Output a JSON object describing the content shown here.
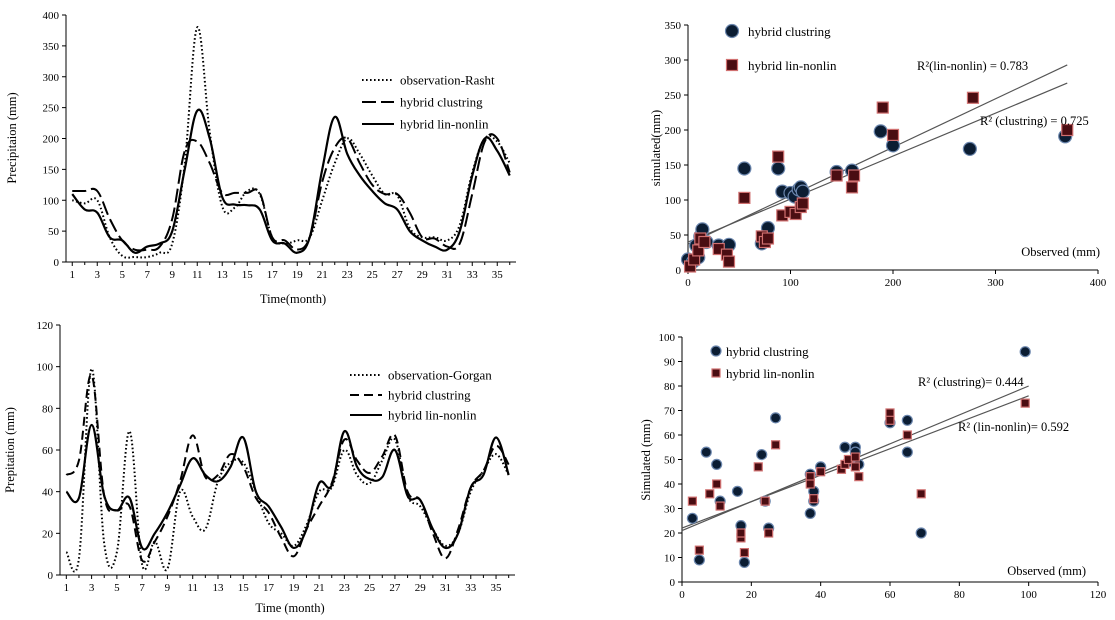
{
  "chart_data": [
    {
      "type": "line",
      "xlabel": "Time(month)",
      "ylabel": "Precipitaion (mm)",
      "ylim": [
        0,
        400
      ],
      "yticks": [
        0,
        50,
        100,
        150,
        200,
        250,
        300,
        350,
        400
      ],
      "xticks": [
        1,
        3,
        5,
        7,
        9,
        11,
        13,
        15,
        17,
        19,
        21,
        23,
        25,
        27,
        29,
        31,
        33,
        35
      ],
      "xlim": [
        0.5,
        36.5
      ],
      "legend_position": "top-right",
      "series": [
        {
          "name": "observation-Rasht",
          "style": "dotted",
          "values": [
            100,
            95,
            100,
            40,
            10,
            8,
            8,
            15,
            30,
            160,
            380,
            210,
            90,
            88,
            115,
            110,
            40,
            30,
            35,
            40,
            100,
            160,
            200,
            175,
            140,
            110,
            108,
            55,
            40,
            40,
            35,
            60,
            145,
            200,
            195,
            160
          ]
        },
        {
          "name": "hybrid clustring",
          "style": "longdash",
          "values": [
            115,
            115,
            115,
            70,
            35,
            20,
            20,
            25,
            70,
            180,
            195,
            160,
            112,
            112,
            112,
            112,
            40,
            35,
            20,
            40,
            130,
            185,
            200,
            160,
            125,
            110,
            110,
            80,
            40,
            38,
            25,
            30,
            110,
            195,
            200,
            145
          ]
        },
        {
          "name": "hybrid lin-nonlin",
          "style": "solid",
          "values": [
            110,
            85,
            80,
            40,
            35,
            15,
            25,
            30,
            50,
            150,
            245,
            200,
            105,
            93,
            92,
            85,
            35,
            30,
            15,
            40,
            150,
            235,
            175,
            140,
            115,
            95,
            85,
            50,
            35,
            25,
            20,
            50,
            140,
            200,
            180,
            140
          ]
        }
      ]
    },
    {
      "type": "scatter",
      "xlabel": "Observed (mm)",
      "ylabel": "simulated(mm)",
      "xlim": [
        0,
        400
      ],
      "ylim": [
        0,
        350
      ],
      "xticks": [
        0,
        100,
        200,
        300,
        400
      ],
      "yticks": [
        0,
        50,
        100,
        150,
        200,
        250,
        300,
        350
      ],
      "legend_position": "top-left",
      "annotations": [
        "R²(lin-nonlin) = 0.783",
        "R² (clustring) = 0.725"
      ],
      "trendlines": [
        {
          "name": "lin-nonlin",
          "x": [
            0,
            370
          ],
          "y": [
            37,
            293
          ]
        },
        {
          "name": "clustring",
          "x": [
            0,
            370
          ],
          "y": [
            40,
            267
          ]
        }
      ],
      "series": [
        {
          "name": "hybrid clustring",
          "marker": "circle",
          "points": [
            [
              0,
              15
            ],
            [
              5,
              12
            ],
            [
              8,
              35
            ],
            [
              10,
              18
            ],
            [
              12,
              48
            ],
            [
              14,
              58
            ],
            [
              18,
              40
            ],
            [
              30,
              35
            ],
            [
              40,
              36
            ],
            [
              55,
              145
            ],
            [
              72,
              38
            ],
            [
              78,
              60
            ],
            [
              88,
              145
            ],
            [
              92,
              112
            ],
            [
              100,
              110
            ],
            [
              104,
              105
            ],
            [
              108,
              115
            ],
            [
              110,
              118
            ],
            [
              112,
              112
            ],
            [
              145,
              140
            ],
            [
              160,
              142
            ],
            [
              188,
              198
            ],
            [
              200,
              178
            ],
            [
              275,
              173
            ],
            [
              368,
              191
            ]
          ]
        },
        {
          "name": "hybrid lin-nonlin",
          "marker": "square",
          "points": [
            [
              2,
              5
            ],
            [
              6,
              15
            ],
            [
              10,
              28
            ],
            [
              12,
              45
            ],
            [
              16,
              40
            ],
            [
              30,
              30
            ],
            [
              38,
              22
            ],
            [
              40,
              12
            ],
            [
              55,
              103
            ],
            [
              72,
              48
            ],
            [
              75,
              40
            ],
            [
              78,
              45
            ],
            [
              88,
              162
            ],
            [
              92,
              78
            ],
            [
              100,
              83
            ],
            [
              105,
              80
            ],
            [
              110,
              90
            ],
            [
              112,
              95
            ],
            [
              145,
              135
            ],
            [
              160,
              118
            ],
            [
              162,
              135
            ],
            [
              190,
              232
            ],
            [
              200,
              193
            ],
            [
              278,
              246
            ],
            [
              370,
              200
            ]
          ]
        }
      ]
    },
    {
      "type": "line",
      "xlabel": "Time (month)",
      "ylabel": "Prepitation (mm)",
      "ylim": [
        0,
        120
      ],
      "yticks": [
        0,
        20,
        40,
        60,
        80,
        100,
        120
      ],
      "xticks": [
        1,
        3,
        5,
        7,
        9,
        11,
        13,
        15,
        17,
        19,
        21,
        23,
        25,
        27,
        29,
        31,
        33,
        35
      ],
      "xlim": [
        0.5,
        36.5
      ],
      "legend_position": "top-right",
      "series": [
        {
          "name": "observation-Gorgan",
          "style": "dotted",
          "values": [
            11,
            8,
            99,
            15,
            11,
            69,
            5,
            16,
            3,
            40,
            28,
            22,
            45,
            54,
            54,
            40,
            25,
            20,
            14,
            24,
            40,
            42,
            60,
            48,
            44,
            55,
            65,
            38,
            33,
            22,
            14,
            20,
            40,
            50,
            58,
            48
          ]
        },
        {
          "name": "hybrid clustring",
          "style": "dashed",
          "values": [
            48,
            55,
            96,
            38,
            31,
            33,
            7,
            16,
            28,
            45,
            67,
            47,
            48,
            58,
            52,
            37,
            30,
            18,
            9,
            22,
            33,
            44,
            65,
            55,
            49,
            57,
            67,
            40,
            36,
            20,
            8,
            22,
            42,
            50,
            62,
            53
          ]
        },
        {
          "name": "hybrid lin-nonlin",
          "style": "solid",
          "values": [
            40,
            37,
            72,
            38,
            31,
            37,
            13,
            20,
            30,
            43,
            56,
            48,
            45,
            52,
            66,
            40,
            33,
            23,
            13,
            22,
            44,
            43,
            69,
            52,
            46,
            47,
            60,
            38,
            36,
            22,
            13,
            20,
            42,
            48,
            66,
            48
          ]
        }
      ]
    },
    {
      "type": "scatter",
      "xlabel": "Observed (mm)",
      "ylabel": "Simulated (mm)",
      "xlim": [
        0,
        120
      ],
      "ylim": [
        0,
        100
      ],
      "xticks": [
        0,
        20,
        40,
        60,
        80,
        100,
        120
      ],
      "yticks": [
        0,
        10,
        20,
        30,
        40,
        50,
        60,
        70,
        80,
        90,
        100
      ],
      "legend_position": "top-left",
      "annotations": [
        "R² (clustring)= 0.444",
        "R² (lin-nonlin)= 0.592"
      ],
      "trendlines": [
        {
          "name": "clustring",
          "x": [
            0,
            100
          ],
          "y": [
            21,
            80
          ]
        },
        {
          "name": "lin-nonlin",
          "x": [
            0,
            100
          ],
          "y": [
            22,
            76
          ]
        }
      ],
      "series": [
        {
          "name": "hybrid clustring",
          "marker": "circle",
          "points": [
            [
              3,
              26
            ],
            [
              5,
              9
            ],
            [
              7,
              53
            ],
            [
              10,
              48
            ],
            [
              11,
              33
            ],
            [
              16,
              37
            ],
            [
              17,
              23
            ],
            [
              18,
              8
            ],
            [
              23,
              52
            ],
            [
              24,
              33
            ],
            [
              25,
              22
            ],
            [
              27,
              67
            ],
            [
              37,
              28
            ],
            [
              37,
              44
            ],
            [
              38,
              33
            ],
            [
              38,
              37
            ],
            [
              40,
              47
            ],
            [
              47,
              55
            ],
            [
              48,
              49
            ],
            [
              50,
              55
            ],
            [
              50,
              53
            ],
            [
              51,
              48
            ],
            [
              60,
              65
            ],
            [
              65,
              66
            ],
            [
              65,
              53
            ],
            [
              69,
              20
            ],
            [
              99,
              94
            ]
          ]
        },
        {
          "name": "hybrid lin-nonlin",
          "marker": "square",
          "points": [
            [
              3,
              33
            ],
            [
              5,
              13
            ],
            [
              8,
              36
            ],
            [
              10,
              40
            ],
            [
              11,
              31
            ],
            [
              17,
              18
            ],
            [
              17,
              20
            ],
            [
              18,
              12
            ],
            [
              22,
              47
            ],
            [
              24,
              33
            ],
            [
              25,
              20
            ],
            [
              27,
              56
            ],
            [
              37,
              43
            ],
            [
              37,
              40
            ],
            [
              38,
              34
            ],
            [
              40,
              45
            ],
            [
              46,
              46
            ],
            [
              47,
              48
            ],
            [
              48,
              50
            ],
            [
              50,
              51
            ],
            [
              50,
              47
            ],
            [
              51,
              43
            ],
            [
              60,
              69
            ],
            [
              60,
              66
            ],
            [
              65,
              60
            ],
            [
              69,
              36
            ],
            [
              99,
              73
            ]
          ]
        }
      ]
    }
  ]
}
